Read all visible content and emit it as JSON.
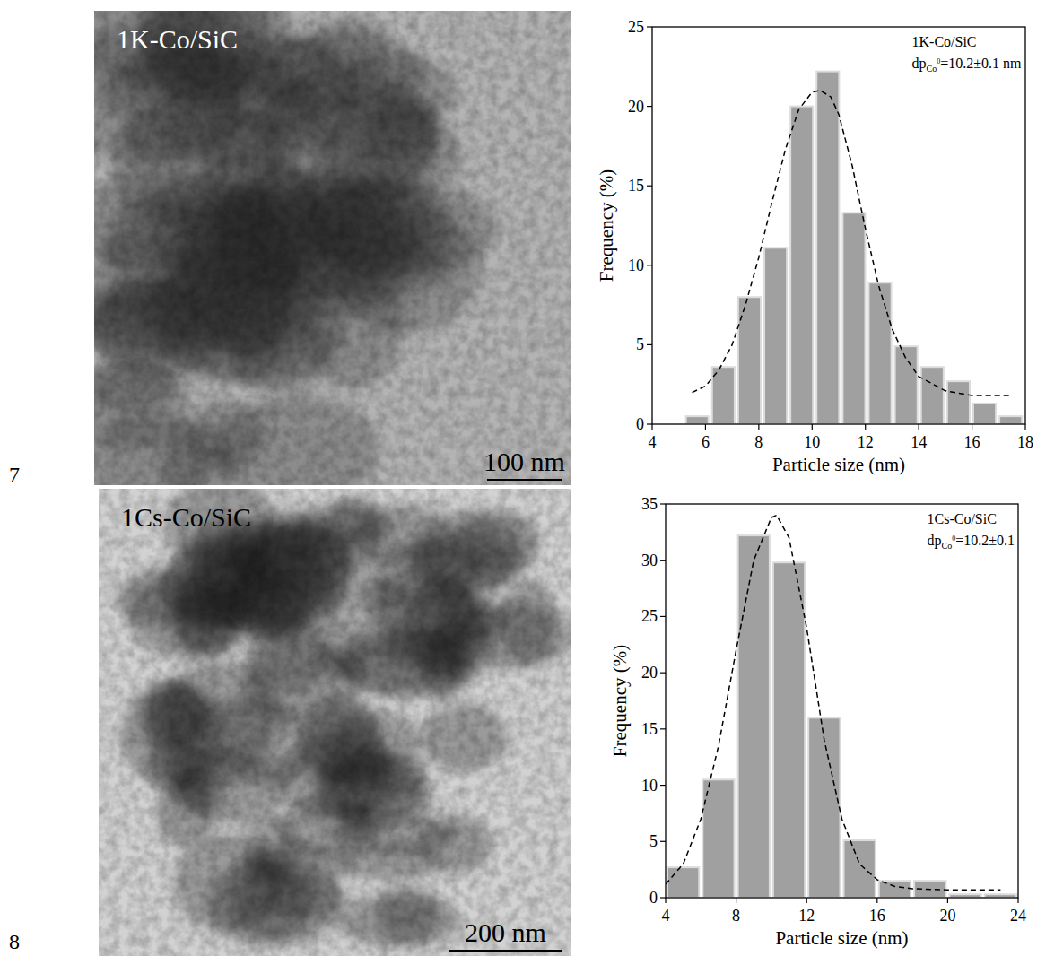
{
  "line_numbers": [
    "7",
    "8"
  ],
  "images": [
    {
      "label": "1K-Co/SiC",
      "scale_bar": "100 nm"
    },
    {
      "label": "1Cs-Co/SiC",
      "scale_bar": "200 nm"
    }
  ],
  "chart_data": [
    {
      "type": "histogram",
      "x_label": "Particle size (nm)",
      "y_label": "Frequency (%)",
      "xlim": [
        4,
        18
      ],
      "xticks": [
        4,
        6,
        8,
        10,
        12,
        14,
        16,
        18
      ],
      "ylim": [
        0,
        25
      ],
      "yticks": [
        0,
        5,
        10,
        15,
        20,
        25
      ],
      "bins": [
        5.2,
        6.18,
        7.16,
        8.14,
        9.12,
        10.1,
        11.08,
        12.06,
        13.04,
        14.02,
        15.0,
        15.98,
        16.96,
        17.94
      ],
      "values": [
        0.5,
        3.6,
        8.0,
        11.1,
        20.0,
        22.2,
        13.3,
        8.9,
        4.9,
        3.6,
        2.7,
        1.3,
        0.5
      ],
      "color": "#a0a0a0",
      "annotations": [
        {
          "text": "1K-Co/SiC"
        },
        {
          "text": "dp",
          "sub": "Co",
          "sup": "0",
          "rest": "=10.2±0.1 nm"
        }
      ],
      "fit": {
        "x": [
          5.5,
          6,
          6.5,
          7,
          7.5,
          8,
          8.5,
          9,
          9.5,
          10,
          10.3,
          10.7,
          11,
          11.5,
          12,
          12.5,
          13,
          13.5,
          14,
          15,
          16,
          17.5
        ],
        "y": [
          2.0,
          2.4,
          3.4,
          5.0,
          7.5,
          10.5,
          14.0,
          17.3,
          19.8,
          20.9,
          21.0,
          20.6,
          19.5,
          16.3,
          12.3,
          8.7,
          6.0,
          4.2,
          3.0,
          2.1,
          1.8,
          1.8
        ],
        "line_style": "dashed",
        "color": "#000000"
      }
    },
    {
      "type": "histogram",
      "x_label": "Particle size (nm)",
      "y_label": "Frequency (%)",
      "xlim": [
        4,
        24
      ],
      "xticks": [
        4,
        8,
        12,
        16,
        20,
        24
      ],
      "ylim": [
        0,
        35
      ],
      "yticks": [
        0,
        5,
        10,
        15,
        20,
        25,
        30,
        35
      ],
      "bins": [
        4,
        6,
        8,
        10,
        12,
        14,
        16,
        18,
        20,
        22,
        24
      ],
      "values": [
        2.7,
        10.5,
        32.2,
        29.8,
        16.0,
        5.1,
        1.5,
        1.5,
        0.3,
        0.3
      ],
      "color": "#a0a0a0",
      "annotations": [
        {
          "text": "1Cs-Co/SiC"
        },
        {
          "text": "dp",
          "sub": "Co",
          "sup": "0",
          "rest": "=10.2±0.1"
        }
      ],
      "fit": {
        "x": [
          4,
          5,
          6,
          7,
          8,
          9,
          10,
          10.3,
          11,
          12,
          13,
          14,
          15,
          16,
          17,
          18,
          20,
          23
        ],
        "y": [
          1.2,
          3.0,
          7.0,
          13.5,
          22.0,
          30.0,
          33.8,
          34.0,
          32.0,
          24.0,
          14.0,
          7.0,
          3.0,
          1.6,
          1.0,
          0.8,
          0.7,
          0.7
        ],
        "line_style": "dashed",
        "color": "#000000"
      }
    }
  ]
}
